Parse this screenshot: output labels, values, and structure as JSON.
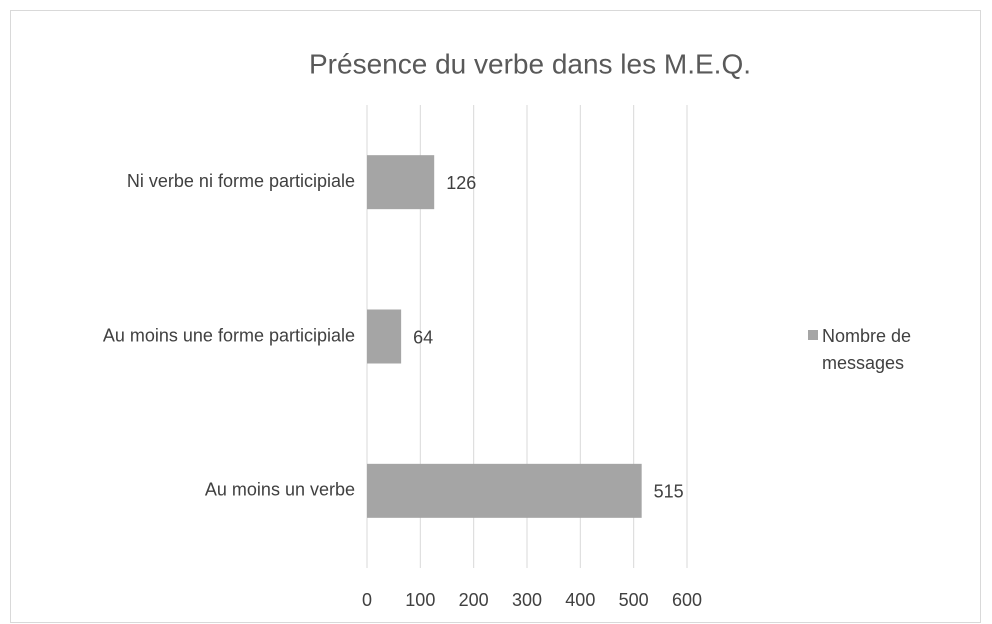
{
  "chart_data": {
    "type": "bar",
    "orientation": "horizontal",
    "title": "Présence du verbe dans les M.E.Q.",
    "categories": [
      "Ni verbe ni forme participiale",
      "Au moins une forme participiale",
      "Au moins un verbe"
    ],
    "series": [
      {
        "name": "Nombre de messages",
        "color": "#a5a5a5",
        "values": [
          126,
          64,
          515
        ]
      }
    ],
    "xlim": [
      0,
      600
    ],
    "xticks": [
      0,
      100,
      200,
      300,
      400,
      500,
      600
    ],
    "grid": true,
    "legend": "right"
  }
}
